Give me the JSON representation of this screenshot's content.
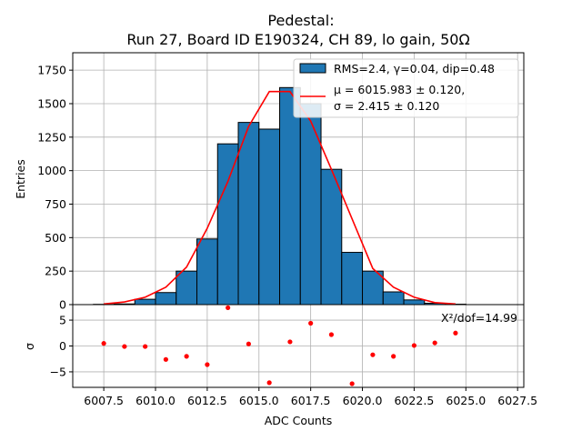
{
  "chart_data": [
    {
      "type": "bar",
      "title_line1": "Pedestal:",
      "title_line2": "Run 27, Board ID E190324, CH 89, lo gain, 50Ω",
      "xlabel": "",
      "ylabel": "Entries",
      "xlim": [
        6006.0,
        6027.8
      ],
      "ylim": [
        0,
        1880
      ],
      "yticks": [
        "0",
        "250",
        "500",
        "750",
        "1000",
        "1250",
        "1500",
        "1750"
      ],
      "ytick_values": [
        0,
        250,
        500,
        750,
        1000,
        1250,
        1500,
        1750
      ],
      "grid": true,
      "legend_position": "top-right",
      "bin_width": 1.0,
      "series": [
        {
          "name": "RMS=2.4, γ=0.04, dip=0.48",
          "style": "histogram",
          "color": "#1f77b4",
          "edgecolor": "#000000",
          "bin_centers": [
            6007.5,
            6008.5,
            6009.5,
            6010.5,
            6011.5,
            6012.5,
            6013.5,
            6014.5,
            6015.5,
            6016.5,
            6017.5,
            6018.5,
            6019.5,
            6020.5,
            6021.5,
            6022.5,
            6023.5,
            6024.5
          ],
          "values": [
            2,
            5,
            40,
            90,
            250,
            490,
            1200,
            1360,
            1310,
            1620,
            1500,
            1010,
            390,
            250,
            95,
            35,
            10,
            3
          ]
        },
        {
          "name_line1": "μ = 6015.983 ± 0.120,",
          "name_line2": "σ = 2.415 ± 0.120",
          "style": "line",
          "color": "#ff0000",
          "x": [
            6007.5,
            6008.5,
            6009.5,
            6010.5,
            6011.5,
            6012.5,
            6013.5,
            6014.5,
            6015.5,
            6016.5,
            6017.5,
            6018.5,
            6019.5,
            6020.5,
            6021.5,
            6022.5,
            6023.5,
            6024.5
          ],
          "y": [
            5,
            20,
            55,
            130,
            280,
            570,
            920,
            1330,
            1590,
            1590,
            1370,
            1010,
            640,
            270,
            130,
            55,
            15,
            5
          ]
        }
      ]
    },
    {
      "type": "scatter",
      "xlabel": "ADC Counts",
      "ylabel": "σ",
      "xlim": [
        6006.0,
        6027.8
      ],
      "ylim": [
        -8,
        8
      ],
      "xticks": [
        "6007.5",
        "6010.0",
        "6012.5",
        "6015.0",
        "6017.5",
        "6020.0",
        "6022.5",
        "6025.0",
        "6027.5"
      ],
      "xtick_values": [
        6007.5,
        6010.0,
        6012.5,
        6015.0,
        6017.5,
        6020.0,
        6022.5,
        6025.0,
        6027.5
      ],
      "yticks": [
        "5",
        "0",
        "−5"
      ],
      "ytick_values": [
        5,
        0,
        -5
      ],
      "grid": true,
      "annotation": "X²/dof=14.99",
      "color": "#ff0000",
      "x": [
        6007.5,
        6008.5,
        6009.5,
        6010.5,
        6011.5,
        6012.5,
        6013.5,
        6014.5,
        6015.5,
        6016.5,
        6017.5,
        6018.5,
        6019.5,
        6020.5,
        6021.5,
        6022.5,
        6023.5,
        6024.5
      ],
      "y": [
        0.5,
        -0.1,
        -0.1,
        -2.6,
        -2.0,
        -3.6,
        7.4,
        0.4,
        -7.1,
        0.8,
        4.4,
        2.2,
        -7.3,
        -1.7,
        -2.0,
        0.1,
        0.6,
        2.5
      ]
    }
  ]
}
